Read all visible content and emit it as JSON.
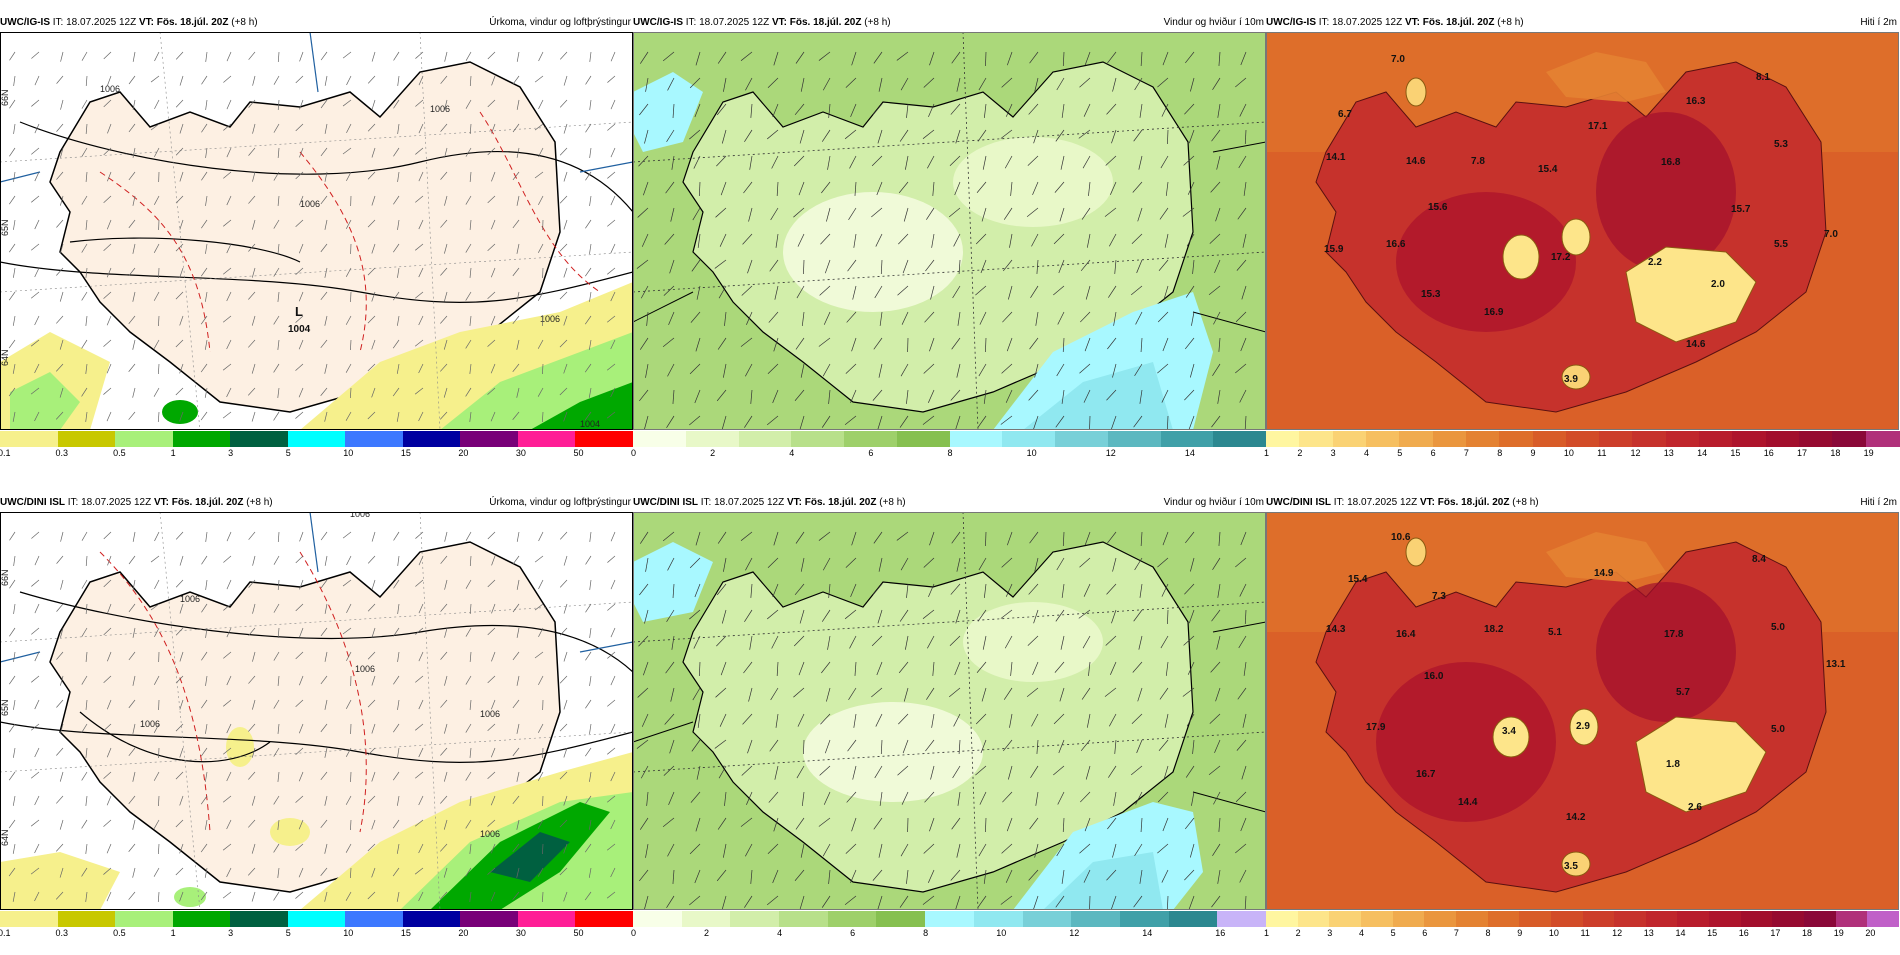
{
  "rows": [
    {
      "model": "UWC/IG-IS",
      "it_label": "IT:",
      "it_value": "18.07.2025 12Z",
      "vt_label": "VT:",
      "vt_value": "Fös. 18.júl. 20Z",
      "lead": "(+8 h)"
    },
    {
      "model": "UWC/DINI ISL",
      "it_label": "IT:",
      "it_value": "18.07.2025 12Z",
      "vt_label": "VT:",
      "vt_value": "Fös. 18.júl. 20Z",
      "lead": "(+8 h)"
    }
  ],
  "panels": {
    "precip": {
      "title": "Úrkoma, vindur og loftþrýstingur"
    },
    "wind": {
      "title": "Vindur og hviður í 10m"
    },
    "temp": {
      "title": "Hiti í 2m"
    }
  },
  "colorbars": {
    "precip": {
      "ticks": [
        "0.1",
        "0.3",
        "0.5",
        "1",
        "3",
        "5",
        "10",
        "15",
        "20",
        "30",
        "50"
      ],
      "colors": [
        "#f6f08c",
        "#c8c800",
        "#a8f07a",
        "#00a800",
        "#006040",
        "#00ffff",
        "#3c78ff",
        "#0000a0",
        "#780078",
        "#ff1e96",
        "#ff0000"
      ]
    },
    "wind_top": {
      "ticks": [
        "0",
        "2",
        "4",
        "6",
        "8",
        "10",
        "12",
        "14"
      ],
      "colors": [
        "#f8ffe8",
        "#e8f8c8",
        "#d2eeaa",
        "#b8e08a",
        "#9ed06a",
        "#86c050",
        "#a8f8ff",
        "#90e8f0",
        "#78d0d8",
        "#5cb8c0",
        "#40a0a8",
        "#2c8890"
      ]
    },
    "wind_bottom": {
      "ticks": [
        "0",
        "2",
        "4",
        "6",
        "8",
        "10",
        "12",
        "14",
        "16"
      ],
      "colors": [
        "#f8ffe8",
        "#e8f8c8",
        "#d2eeaa",
        "#b8e08a",
        "#9ed06a",
        "#86c050",
        "#a8f8ff",
        "#90e8f0",
        "#78d0d8",
        "#5cb8c0",
        "#40a0a8",
        "#2c8890",
        "#c8b4f8"
      ]
    },
    "temp_top": {
      "ticks": [
        "1",
        "2",
        "3",
        "4",
        "5",
        "6",
        "7",
        "8",
        "9",
        "10",
        "11",
        "12",
        "13",
        "14",
        "15",
        "16",
        "17",
        "18",
        "19"
      ],
      "colors": [
        "#fff6a0",
        "#fde58a",
        "#fad274",
        "#f6bf60",
        "#f0ab4e",
        "#ea963e",
        "#e48232",
        "#de6e2a",
        "#d85c28",
        "#d24c28",
        "#cc3e2a",
        "#c6322c",
        "#c0262c",
        "#b81c2c",
        "#ae142c",
        "#a20e2c",
        "#960a30",
        "#8a0838",
        "#b0307a"
      ]
    },
    "temp_bottom": {
      "ticks": [
        "1",
        "2",
        "3",
        "4",
        "5",
        "6",
        "7",
        "8",
        "9",
        "10",
        "11",
        "12",
        "13",
        "14",
        "15",
        "16",
        "17",
        "18",
        "19",
        "20"
      ],
      "colors": [
        "#fff6a0",
        "#fde58a",
        "#fad274",
        "#f6bf60",
        "#f0ab4e",
        "#ea963e",
        "#e48232",
        "#de6e2a",
        "#d85c28",
        "#d24c28",
        "#cc3e2a",
        "#c6322c",
        "#c0262c",
        "#b81c2c",
        "#ae142c",
        "#a20e2c",
        "#960a30",
        "#8a0838",
        "#b0307a",
        "#c060c8"
      ]
    }
  },
  "pressure_labels": {
    "top": [
      "1006",
      "1006",
      "1006",
      "1006",
      "1004",
      "1004"
    ],
    "low_marker": "L",
    "low_value": "1004",
    "bottom": [
      "1006",
      "1006",
      "1006",
      "1006",
      "1006",
      "1006"
    ]
  },
  "temp_values": {
    "top": [
      "7.0",
      "8.1",
      "6.7",
      "16.3",
      "14.1",
      "14.6",
      "7.8",
      "17.1",
      "15.4",
      "16.8",
      "5.3",
      "15.6",
      "15.7",
      "15.9",
      "16.6",
      "17.2",
      "2.2",
      "2.0",
      "5.5",
      "7.0",
      "15.3",
      "16.9",
      "14.6",
      "3.9"
    ],
    "bottom": [
      "10.6",
      "8.4",
      "15.4",
      "7.3",
      "14.9",
      "14.3",
      "16.4",
      "18.2",
      "5.1",
      "17.8",
      "5.0",
      "13.1",
      "16.0",
      "5.7",
      "17.9",
      "3.4",
      "2.9",
      "5.0",
      "16.7",
      "1.8",
      "14.4",
      "14.2",
      "2.6",
      "3.5"
    ]
  },
  "lat_labels": [
    "66N",
    "65N",
    "64N"
  ]
}
